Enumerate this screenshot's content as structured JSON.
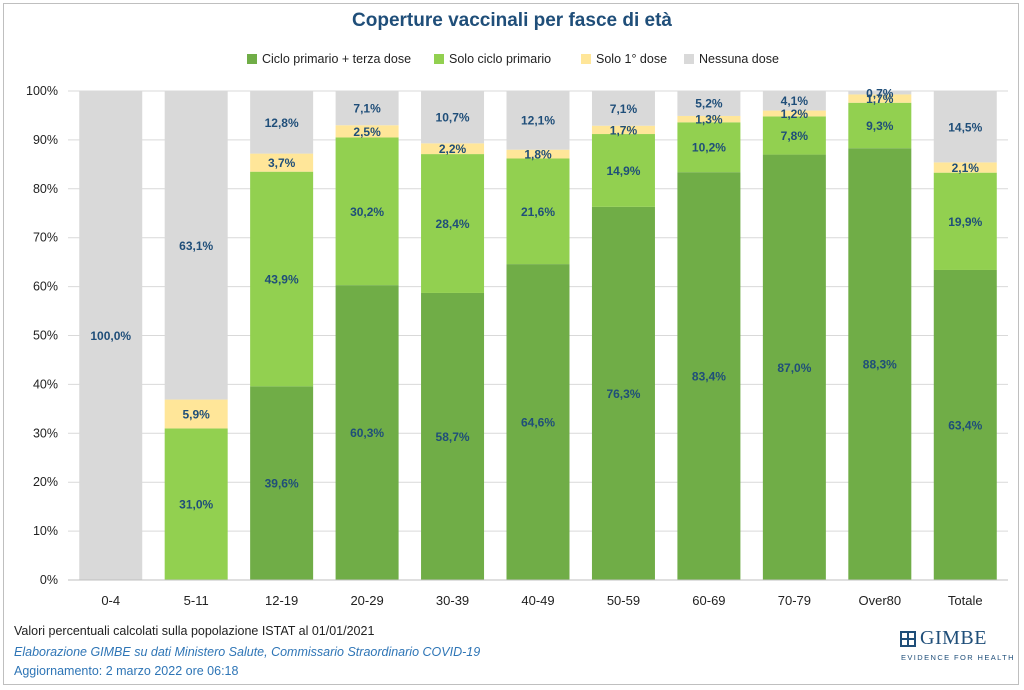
{
  "chart_data": {
    "type": "bar",
    "stacked": true,
    "title": "Coperture vaccinali per fasce di età",
    "categories": [
      "0-4",
      "5-11",
      "12-19",
      "20-29",
      "30-39",
      "40-49",
      "50-59",
      "60-69",
      "70-79",
      "Over80",
      "Totale"
    ],
    "y_ticks": [
      "0%",
      "10%",
      "20%",
      "30%",
      "40%",
      "50%",
      "60%",
      "70%",
      "80%",
      "90%",
      "100%"
    ],
    "ylim": [
      0,
      100
    ],
    "legend_position": "top",
    "series": [
      {
        "name": "Ciclo primario + terza dose",
        "color": "#70ad47",
        "values": [
          0,
          0,
          39.6,
          60.3,
          58.7,
          64.6,
          76.3,
          83.4,
          87.0,
          88.3,
          63.4
        ],
        "labels": [
          "",
          "",
          "39,6%",
          "60,3%",
          "58,7%",
          "64,6%",
          "76,3%",
          "83,4%",
          "87,0%",
          "88,3%",
          "63,4%"
        ]
      },
      {
        "name": "Solo ciclo primario",
        "color": "#92d050",
        "values": [
          0,
          31.0,
          43.9,
          30.2,
          28.4,
          21.6,
          14.9,
          10.2,
          7.8,
          9.3,
          19.9
        ],
        "labels": [
          "",
          "31,0%",
          "43,9%",
          "30,2%",
          "28,4%",
          "21,6%",
          "14,9%",
          "10,2%",
          "7,8%",
          "9,3%",
          "19,9%"
        ]
      },
      {
        "name": "Solo 1° dose",
        "color": "#ffe699",
        "values": [
          0,
          5.9,
          3.7,
          2.5,
          2.2,
          1.8,
          1.7,
          1.3,
          1.2,
          1.7,
          2.1
        ],
        "labels": [
          "",
          "5,9%",
          "3,7%",
          "2,5%",
          "2,2%",
          "1,8%",
          "1,7%",
          "1,3%",
          "1,2%",
          "1,7%",
          "2,1%"
        ]
      },
      {
        "name": "Nessuna dose",
        "color": "#d9d9d9",
        "values": [
          100.0,
          63.1,
          12.8,
          7.1,
          10.7,
          12.1,
          7.1,
          5.2,
          4.1,
          0.7,
          14.5
        ],
        "labels": [
          "100,0%",
          "63,1%",
          "12,8%",
          "7,1%",
          "10,7%",
          "12,1%",
          "7,1%",
          "5,2%",
          "4,1%",
          "0,7%",
          "14,5%"
        ]
      }
    ]
  },
  "notes": {
    "line1": "Valori percentuali calcolati sulla popolazione ISTAT al 01/01/2021",
    "line2": "Elaborazione GIMBE su dati Ministero Salute, Commissario Straordinario COVID-19",
    "line3": "Aggiornamento: 2 marzo 2022 ore 06:18"
  },
  "logo": {
    "name": "GIMBE",
    "tagline": "EVIDENCE FOR HEALTH"
  }
}
